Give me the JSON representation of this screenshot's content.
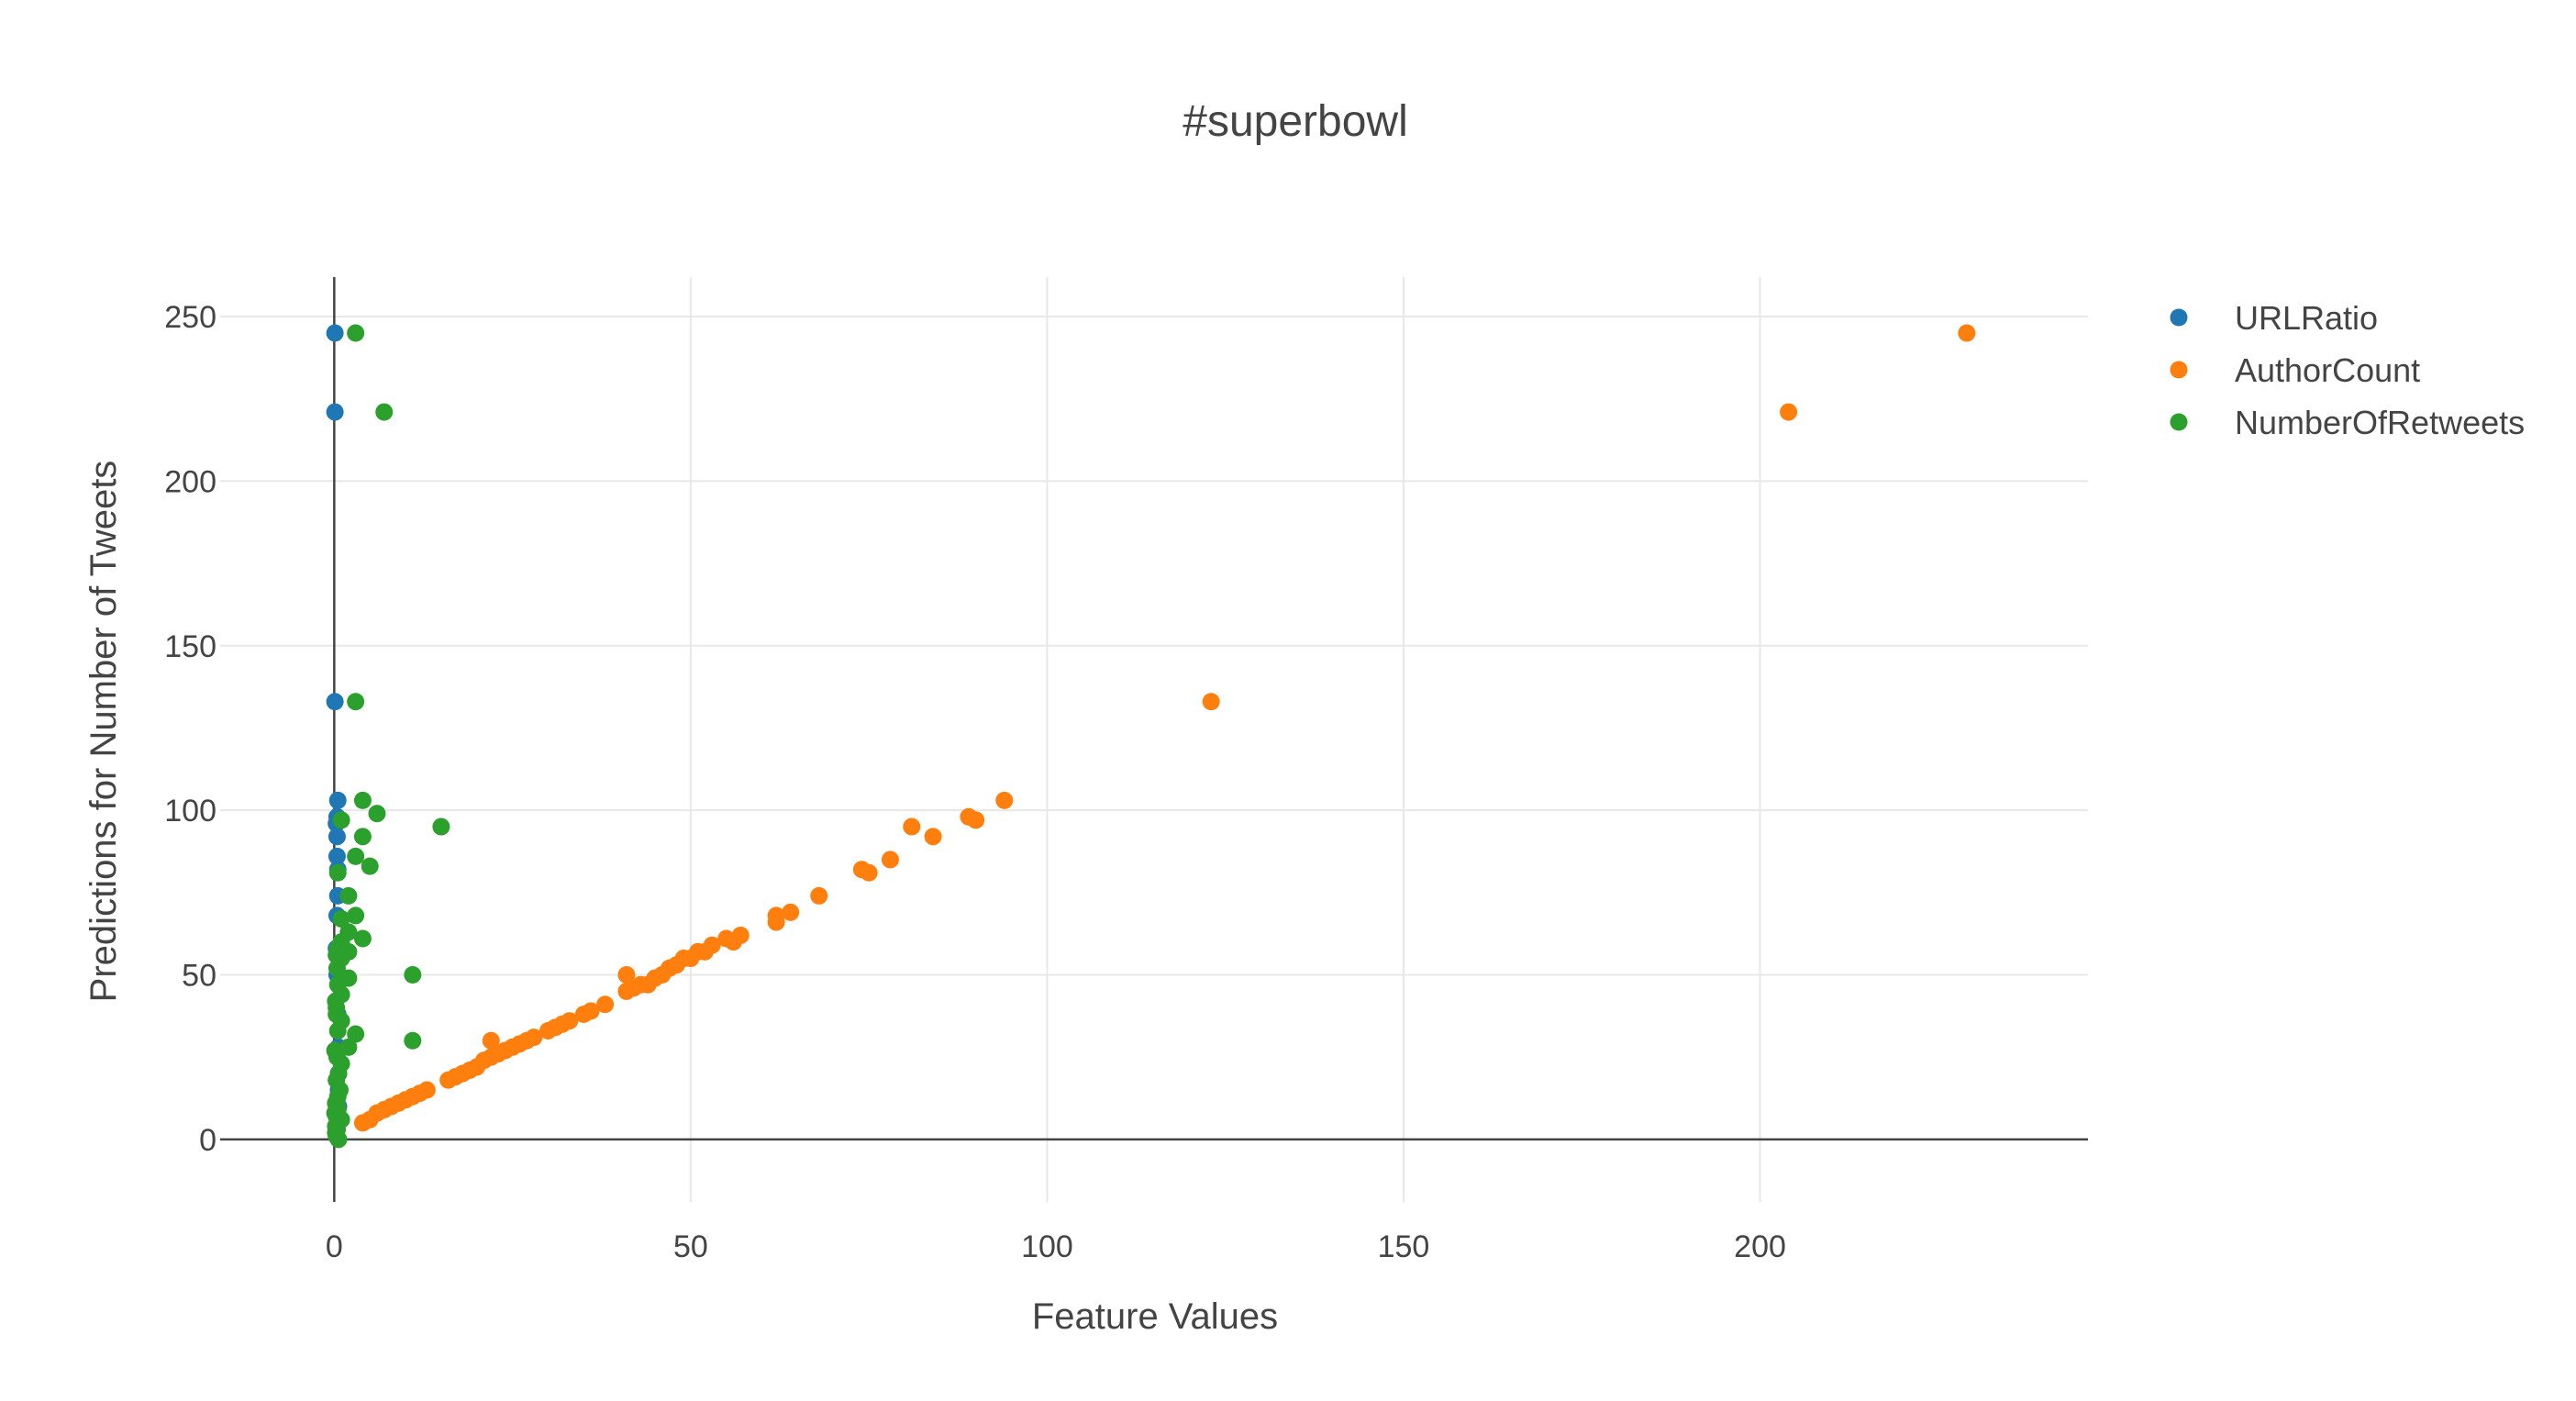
{
  "chart_data": {
    "type": "scatter",
    "title": "#superbowl",
    "xlabel": "Feature Values",
    "ylabel": "Predictions for Number of Tweets",
    "xlim": [
      -16,
      246
    ],
    "ylim": [
      -19,
      262
    ],
    "xticks": [
      0,
      50,
      100,
      150,
      200
    ],
    "yticks": [
      0,
      50,
      100,
      150,
      200,
      250
    ],
    "grid": true,
    "legend_position": "top-right",
    "series": [
      {
        "name": "URLRatio",
        "color": "#1f77b4",
        "x": [
          0.1,
          0.1,
          0.1,
          0.5,
          0.4,
          0.3,
          0.4,
          0.4,
          0.5,
          0.5,
          0.4,
          0.3,
          0.4,
          0.5,
          0.6,
          0.6,
          0.6,
          0.6,
          0.5,
          0.4
        ],
        "y": [
          245,
          221,
          133,
          103,
          98,
          96,
          92,
          86,
          82,
          74,
          68,
          58,
          50,
          38,
          28,
          20,
          15,
          10,
          6,
          3
        ]
      },
      {
        "name": "AuthorCount",
        "color": "#ff7f0e",
        "x": [
          229,
          204,
          123,
          94,
          90,
          89,
          84,
          81,
          78,
          75,
          74,
          68,
          64,
          62,
          62,
          57,
          56,
          55,
          53,
          52,
          51,
          50,
          49,
          48,
          47,
          46,
          45,
          44,
          43,
          42,
          41,
          41,
          38,
          36,
          35,
          33,
          32,
          31,
          30,
          28,
          27,
          26,
          25,
          24,
          23,
          22,
          22,
          21,
          20,
          19,
          18,
          17,
          16,
          13,
          12,
          11,
          10,
          9,
          8,
          7,
          6,
          5,
          4
        ],
        "y": [
          245,
          221,
          133,
          103,
          97,
          98,
          92,
          95,
          85,
          81,
          82,
          74,
          69,
          66,
          68,
          62,
          60,
          61,
          59,
          57,
          57,
          55,
          55,
          53,
          52,
          50,
          49,
          47,
          47,
          46,
          45,
          50,
          41,
          39,
          38,
          36,
          35,
          34,
          33,
          31,
          30,
          29,
          28,
          27,
          26,
          25,
          30,
          24,
          22,
          21,
          20,
          19,
          18,
          15,
          14,
          13,
          12,
          11,
          10,
          9,
          8,
          6,
          5
        ]
      },
      {
        "name": "NumberOfRetweets",
        "color": "#2ca02c",
        "x": [
          3,
          7,
          3,
          4,
          6,
          1,
          4,
          15,
          3,
          5,
          0.5,
          2,
          3,
          1,
          4,
          11,
          3,
          2,
          1,
          11,
          0.5,
          0.3,
          1,
          2,
          0.5,
          1,
          2,
          1,
          0.3,
          0.5,
          1,
          0.4,
          0.6,
          0.3,
          0.8,
          0.5,
          0.2,
          0.4,
          0.1,
          0.3,
          0.5,
          0.2,
          0.4,
          0.2,
          1,
          0.3,
          0.6,
          0.4,
          0.2,
          0.3,
          0.1,
          2,
          0.5
        ],
        "y": [
          245,
          221,
          133,
          103,
          99,
          97,
          92,
          95,
          86,
          83,
          81,
          74,
          68,
          67,
          61,
          50,
          32,
          28,
          60,
          30,
          58,
          56,
          55,
          49,
          47,
          44,
          57,
          36,
          40,
          33,
          23,
          25,
          20,
          18,
          15,
          13,
          11,
          10,
          8,
          7,
          5,
          4,
          3,
          2,
          6,
          1,
          0,
          52,
          42,
          38,
          27,
          63,
          9
        ]
      }
    ]
  }
}
